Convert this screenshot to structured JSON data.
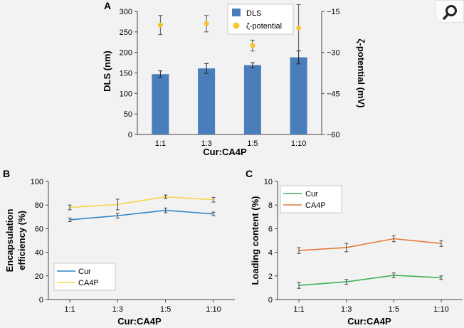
{
  "panels": {
    "a": "A",
    "b": "B",
    "c": "C"
  },
  "chart_data": [
    {
      "type": "bar",
      "panel": "A",
      "categories": [
        "1:1",
        "1:3",
        "1:5",
        "1:10"
      ],
      "xlabel": "Cur:CA4P",
      "ylabel": "DLS (nm)",
      "ylabel_right": "ζ-potential (mV)",
      "ylim": [
        0,
        300
      ],
      "yticks": [
        0,
        50,
        100,
        150,
        200,
        250,
        300
      ],
      "ylim_right": [
        -60,
        -15
      ],
      "yticks_right": [
        -15,
        -30,
        -45,
        -60
      ],
      "legend": {
        "placement": "top-right",
        "entries": [
          "DLS",
          "ζ-potential"
        ]
      },
      "series": [
        {
          "name": "DLS",
          "axis": "left",
          "kind": "bar",
          "color": "#4a7ebb",
          "values": [
            147,
            161,
            169,
            188
          ],
          "errors": [
            8,
            12,
            6,
            16
          ]
        },
        {
          "name": "ζ-potential",
          "axis": "right",
          "kind": "scatter",
          "color": "#f7c531",
          "values": [
            -20,
            -19.5,
            -27.5,
            -21
          ],
          "errors": [
            3.5,
            3,
            2,
            8.5
          ]
        }
      ],
      "grid": false
    },
    {
      "type": "line",
      "panel": "B",
      "categories": [
        "1:1",
        "1:3",
        "1:5",
        "1:10"
      ],
      "xlabel": "Cur:CA4P",
      "ylabel": "Encapsulation efficiency (%)",
      "ylabel_lines": [
        "Encapsulation",
        "efficiency (%)"
      ],
      "ylim": [
        0,
        100
      ],
      "yticks": [
        0,
        20,
        40,
        60,
        80,
        100
      ],
      "legend": {
        "placement": "bottom-left",
        "entries": [
          "Cur",
          "CA4P"
        ]
      },
      "series": [
        {
          "name": "Cur",
          "color": "#2f86c8",
          "values": [
            67.5,
            71,
            75.5,
            72.5
          ],
          "errors": [
            1.5,
            2,
            2,
            1.5
          ]
        },
        {
          "name": "CA4P",
          "color": "#f5d54b",
          "values": [
            78,
            80.5,
            87,
            84.5
          ],
          "errors": [
            2,
            4.5,
            1.5,
            2
          ]
        }
      ],
      "grid": false
    },
    {
      "type": "line",
      "panel": "C",
      "categories": [
        "1:1",
        "1:3",
        "1:5",
        "1:10"
      ],
      "xlabel": "Cur:CA4P",
      "ylabel": "Loading content (%)",
      "ylim": [
        0,
        10
      ],
      "yticks": [
        0,
        2,
        4,
        6,
        8,
        10
      ],
      "legend": {
        "placement": "top-left",
        "entries": [
          "Cur",
          "CA4P"
        ]
      },
      "series": [
        {
          "name": "Cur",
          "color": "#3cb35a",
          "values": [
            1.2,
            1.5,
            2.05,
            1.85
          ],
          "errors": [
            0.25,
            0.2,
            0.2,
            0.15
          ]
        },
        {
          "name": "CA4P",
          "color": "#e07b39",
          "values": [
            4.15,
            4.4,
            5.15,
            4.75
          ],
          "errors": [
            0.25,
            0.35,
            0.25,
            0.25
          ]
        }
      ],
      "grid": false
    }
  ],
  "corner_icon": "magnifier-icon"
}
